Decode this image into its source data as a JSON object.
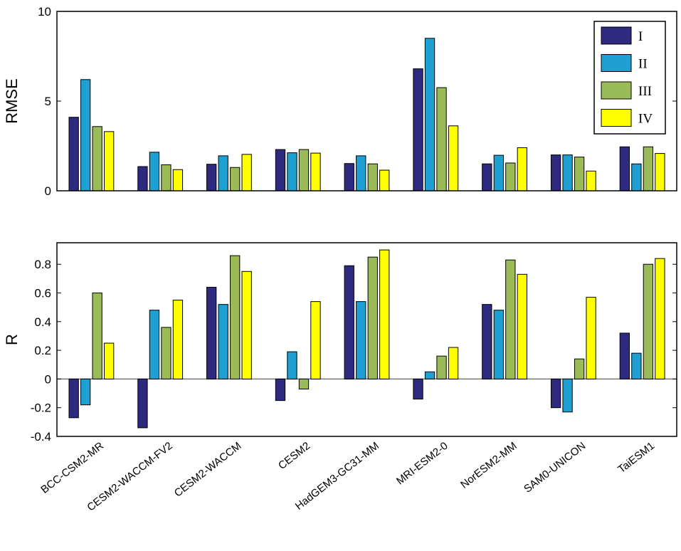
{
  "chart_data": [
    {
      "type": "bar",
      "ylabel": "RMSE",
      "ylim": [
        0,
        10
      ],
      "yticks": [
        "0",
        "5",
        "10"
      ],
      "ytick_values": [
        0,
        5,
        10
      ],
      "categories": [
        "BCC-CSM2-MR",
        "CESM2-WACCM-FV2",
        "CESM2-WACCM",
        "CESM2",
        "HadGEM3-GC31-MM",
        "MRI-ESM2-0",
        "NorESM2-MM",
        "SAM0-UNICON",
        "TaiESM1"
      ],
      "legend_position": "top-right",
      "series": [
        {
          "name": "I",
          "color": "#2e2a80",
          "values": [
            4.1,
            1.35,
            1.48,
            2.3,
            1.52,
            6.8,
            1.5,
            2.0,
            2.45
          ]
        },
        {
          "name": "II",
          "color": "#1ea0d2",
          "values": [
            6.2,
            2.15,
            1.95,
            2.12,
            1.95,
            8.5,
            1.98,
            2.0,
            1.5
          ]
        },
        {
          "name": "III",
          "color": "#9bbb59",
          "values": [
            3.58,
            1.45,
            1.3,
            2.3,
            1.5,
            5.75,
            1.55,
            1.88,
            2.45
          ]
        },
        {
          "name": "IV",
          "color": "#ffff00",
          "values": [
            3.3,
            1.18,
            2.03,
            2.1,
            1.15,
            3.62,
            2.4,
            1.1,
            2.08
          ]
        }
      ]
    },
    {
      "type": "bar",
      "ylabel": "R",
      "ylim": [
        -0.4,
        0.95
      ],
      "yticks": [
        "-0.4",
        "-0.2",
        "0",
        "0.2",
        "0.4",
        "0.6",
        "0.8"
      ],
      "ytick_values": [
        -0.4,
        -0.2,
        0,
        0.2,
        0.4,
        0.6,
        0.8
      ],
      "categories": [
        "BCC-CSM2-MR",
        "CESM2-WACCM-FV2",
        "CESM2-WACCM",
        "CESM2",
        "HadGEM3-GC31-MM",
        "MRI-ESM2-0",
        "NorESM2-MM",
        "SAM0-UNICON",
        "TaiESM1"
      ],
      "series": [
        {
          "name": "I",
          "color": "#2e2a80",
          "values": [
            -0.27,
            -0.34,
            0.64,
            -0.15,
            0.79,
            -0.14,
            0.52,
            -0.2,
            0.32
          ]
        },
        {
          "name": "II",
          "color": "#1ea0d2",
          "values": [
            -0.18,
            0.48,
            0.52,
            0.19,
            0.54,
            0.05,
            0.48,
            -0.23,
            0.18
          ]
        },
        {
          "name": "III",
          "color": "#9bbb59",
          "values": [
            0.6,
            0.36,
            0.86,
            -0.07,
            0.85,
            0.16,
            0.83,
            0.14,
            0.8
          ]
        },
        {
          "name": "IV",
          "color": "#ffff00",
          "values": [
            0.25,
            0.55,
            0.75,
            0.54,
            0.9,
            0.22,
            0.73,
            0.57,
            0.84
          ]
        }
      ]
    }
  ]
}
